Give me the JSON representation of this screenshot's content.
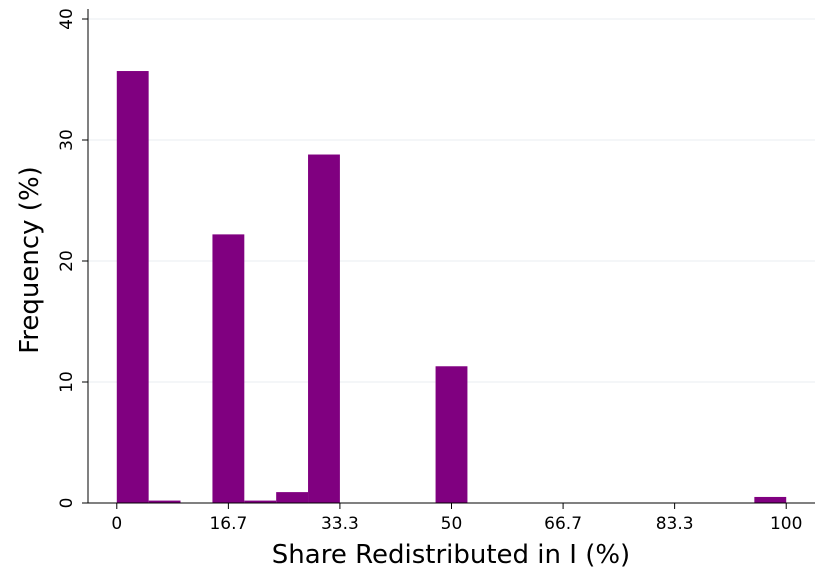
{
  "chart_data": {
    "type": "histogram",
    "xlabel": "Share Redistributed in I (%)",
    "ylabel": "Frequency (%)",
    "bins": [
      0,
      4.76,
      9.52,
      14.29,
      19.05,
      23.81,
      28.57,
      33.33,
      38.1,
      42.86,
      47.62,
      52.38,
      57.14,
      61.9,
      66.67,
      71.43,
      76.19,
      80.95,
      85.71,
      90.48,
      95.24,
      100
    ],
    "values": [
      35.7,
      0.2,
      0,
      22.2,
      0.2,
      0.9,
      28.8,
      0,
      0,
      0,
      11.3,
      0,
      0,
      0,
      0,
      0,
      0,
      0,
      0,
      0,
      0.5
    ],
    "color": "#800080",
    "xlim": [
      -4.3,
      104.3
    ],
    "ylim": [
      0,
      40
    ],
    "xticks": [
      0,
      {
        "value": 16.67,
        "label": "16.7"
      },
      {
        "value": 33.33,
        "label": "33.3"
      },
      50,
      {
        "value": 66.67,
        "label": "66.7"
      },
      {
        "value": 83.33,
        "label": "83.3"
      },
      100
    ],
    "yticks": [
      0,
      10,
      20,
      30,
      40
    ],
    "grid": true
  }
}
